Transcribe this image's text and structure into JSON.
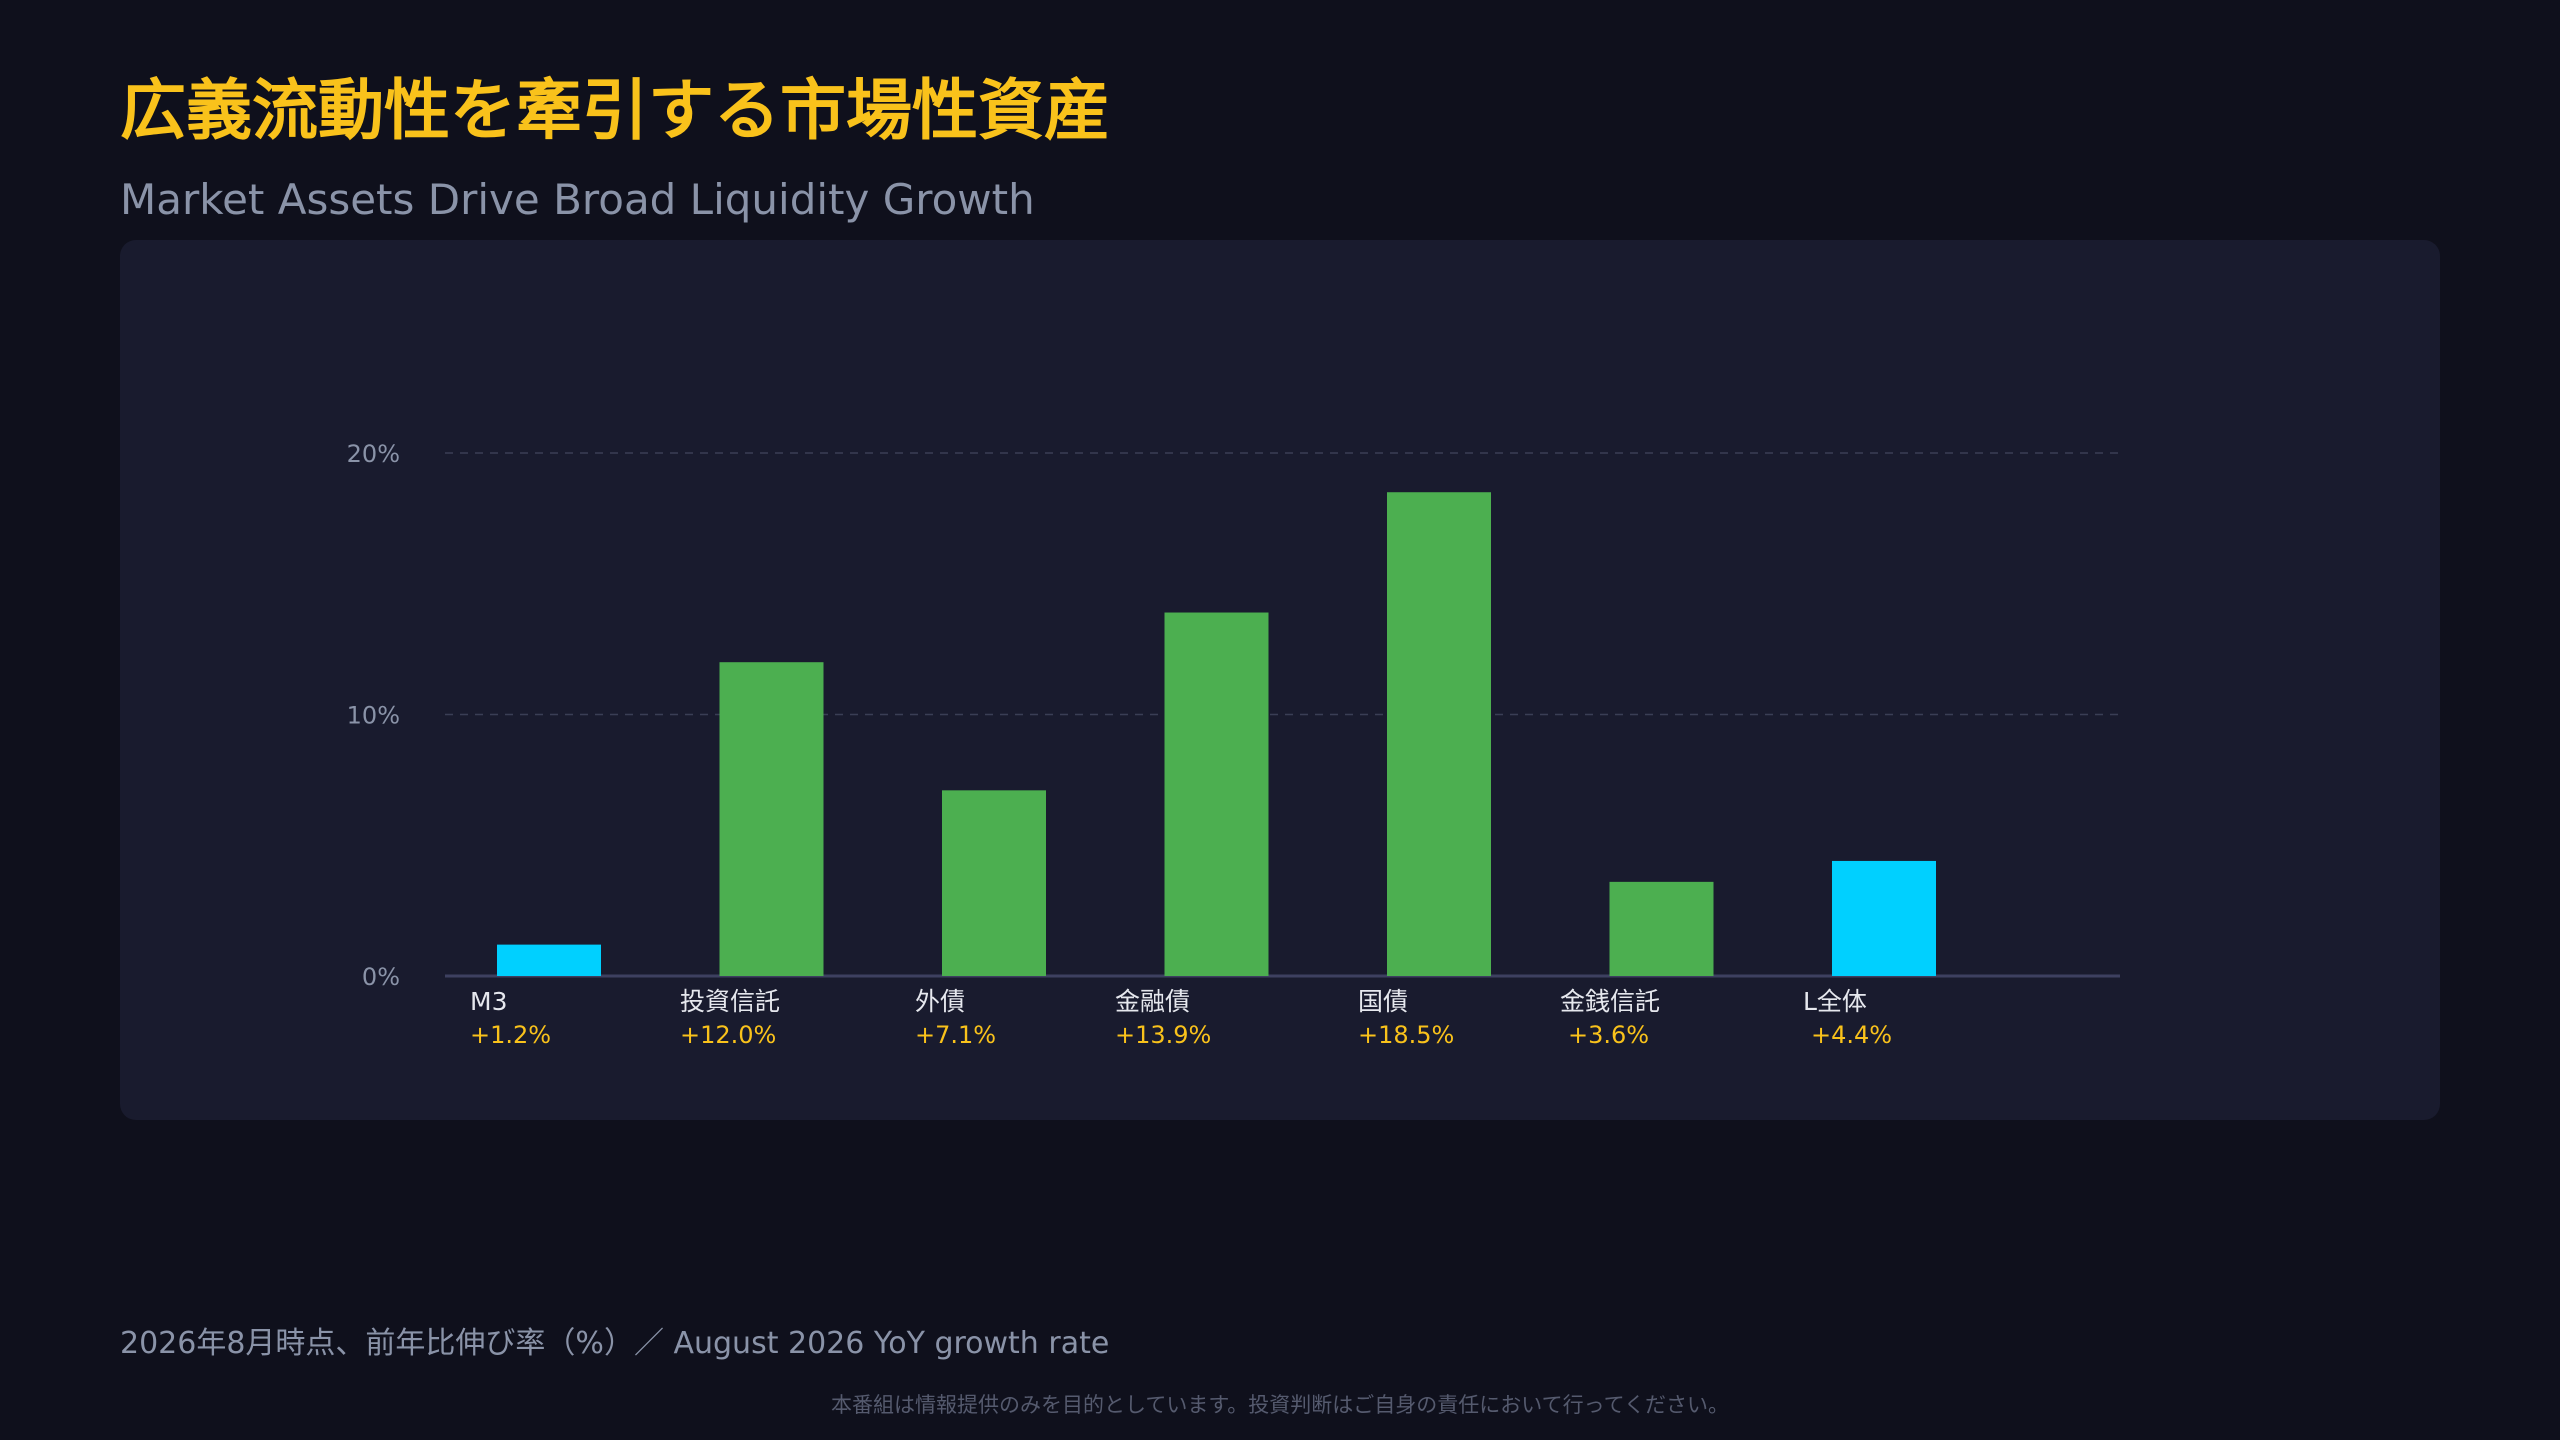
{
  "header": {
    "title": "広義流動性を牽引する市場性資産",
    "subtitle": "Market Assets Drive Broad Liquidity Growth"
  },
  "colors": {
    "background": "#0f101c",
    "panel": "#191b2e",
    "title": "#f9c21b",
    "value_label": "#f9c21b",
    "highlight_bar": "#00d0ff",
    "standard_bar": "#4caf50",
    "grid": "#3a3e55",
    "axis": "#3d4060",
    "tick_text": "#8a93a8",
    "category_text": "#e6e8ee"
  },
  "chart_data": {
    "type": "bar",
    "title": "",
    "xlabel": "",
    "ylabel": "",
    "ylim": [
      0,
      20
    ],
    "yticks": [
      0,
      10,
      20
    ],
    "ytick_labels": [
      "0%",
      "10%",
      "20%"
    ],
    "grid": true,
    "categories": [
      "M3",
      "投資信託",
      "外債",
      "金融債",
      "国債",
      "金銭信託",
      "L全体"
    ],
    "values": [
      1.2,
      12.0,
      7.1,
      13.9,
      18.5,
      3.6,
      4.4
    ],
    "value_labels": [
      "+1.2%",
      "+12.0%",
      "+7.1%",
      "+13.9%",
      "+18.5%",
      "+3.6%",
      "+4.4%"
    ],
    "highlight": [
      true,
      false,
      false,
      false,
      false,
      false,
      true
    ]
  },
  "footer": {
    "note": "2026年8月時点、前年比伸び率（%）／ August 2026 YoY growth rate",
    "disclaimer": "本番組は情報提供のみを目的としています。投資判断はご自身の責任において行ってください。"
  }
}
